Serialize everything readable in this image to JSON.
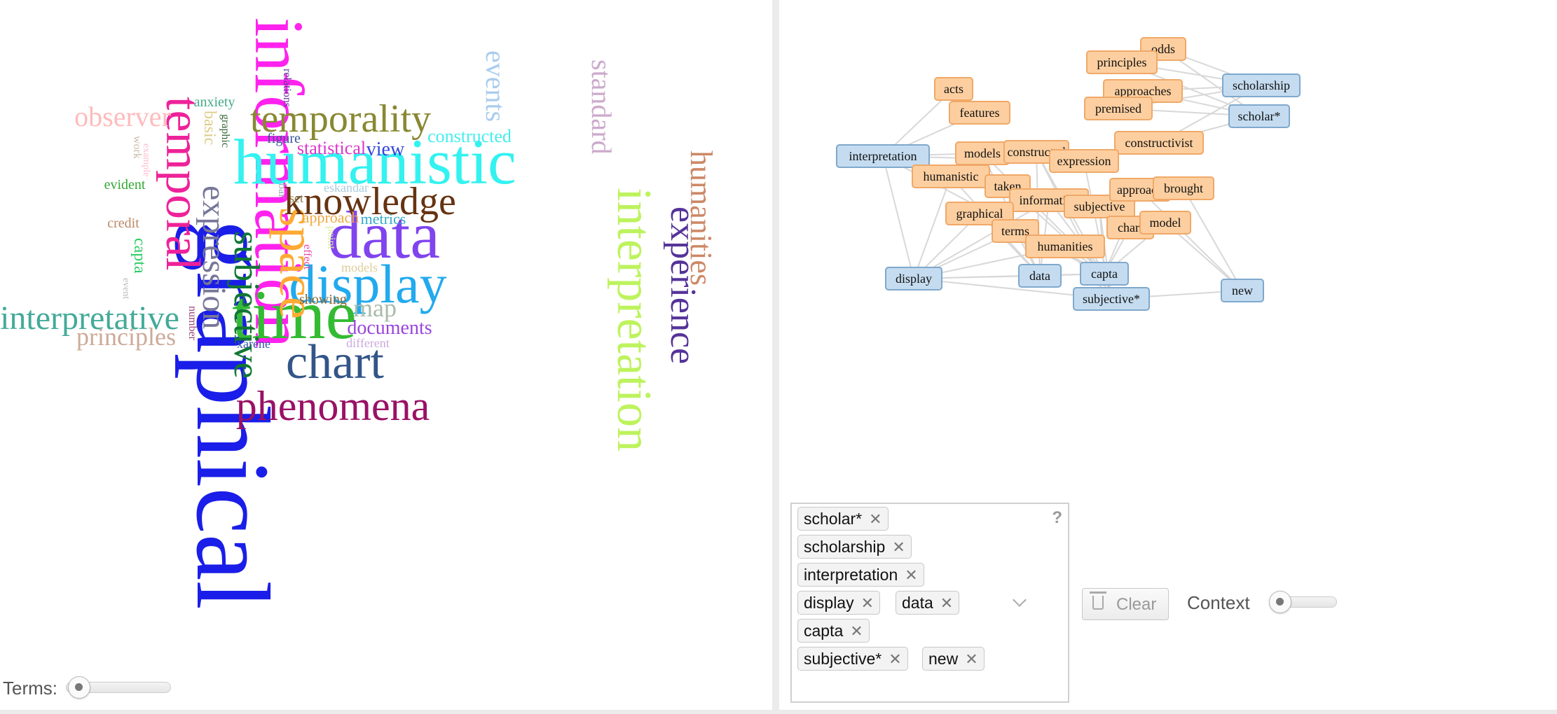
{
  "word_cloud": {
    "words": [
      {
        "text": "graphical",
        "color": "#1a1ee8",
        "size": 150
      },
      {
        "text": "information",
        "color": "#ff22ee",
        "size": 100
      },
      {
        "text": "humanistic",
        "color": "#33f2f0",
        "size": 92
      },
      {
        "text": "time",
        "color": "#33bb33",
        "size": 100
      },
      {
        "text": "data",
        "color": "#8044ee",
        "size": 96
      },
      {
        "text": "display",
        "color": "#22aaee",
        "size": 78
      },
      {
        "text": "interpretation",
        "color": "#bdf35d",
        "size": 70
      },
      {
        "text": "temporal",
        "color": "#ee2299",
        "size": 70
      },
      {
        "text": "space",
        "color": "#ffaa33",
        "size": 72
      },
      {
        "text": "chart",
        "color": "#335588",
        "size": 70
      },
      {
        "text": "phenomena",
        "color": "#991166",
        "size": 60
      },
      {
        "text": "knowledge",
        "color": "#663311",
        "size": 56
      },
      {
        "text": "temporality",
        "color": "#888833",
        "size": 56
      },
      {
        "text": "experience",
        "color": "#553399",
        "size": 52
      },
      {
        "text": "expression",
        "color": "#777799",
        "size": 48
      },
      {
        "text": "subjective",
        "color": "#117733",
        "size": 52
      },
      {
        "text": "interpretative",
        "color": "#44aa99",
        "size": 48
      },
      {
        "text": "humanities",
        "color": "#cc8866",
        "size": 44
      },
      {
        "text": "standard",
        "color": "#ccaacc",
        "size": 40
      },
      {
        "text": "events",
        "color": "#aaccee",
        "size": 40
      },
      {
        "text": "observer",
        "color": "#ffbbbb",
        "size": 40
      },
      {
        "text": "principles",
        "color": "#ccaa99",
        "size": 36
      },
      {
        "text": "map",
        "color": "#aabbaa",
        "size": 36
      },
      {
        "text": "documents",
        "color": "#9944dd",
        "size": 28
      },
      {
        "text": "constructed",
        "color": "#44eeee",
        "size": 26
      },
      {
        "text": "statistical",
        "color": "#dd33cc",
        "size": 26
      },
      {
        "text": "view",
        "color": "#3344dd",
        "size": 28
      },
      {
        "text": "basic",
        "color": "#ddcc88",
        "size": 24
      },
      {
        "text": "capta",
        "color": "#33cc66",
        "size": 24
      },
      {
        "text": "approach",
        "color": "#eeaa44",
        "size": 22
      },
      {
        "text": "metrics",
        "color": "#33aacc",
        "size": 22
      },
      {
        "text": "anxiety",
        "color": "#44aa88",
        "size": 20
      },
      {
        "text": "evident",
        "color": "#33aa33",
        "size": 20
      },
      {
        "text": "credit",
        "color": "#bb8866",
        "size": 20
      },
      {
        "text": "figure",
        "color": "#335599",
        "size": 20
      },
      {
        "text": "showing",
        "color": "#886633",
        "size": 20
      },
      {
        "text": "set",
        "color": "#887744",
        "size": 18
      },
      {
        "text": "eskandar",
        "color": "#aaccdd",
        "size": 18
      },
      {
        "text": "models",
        "color": "#ddcc99",
        "size": 18
      },
      {
        "text": "different",
        "color": "#ccaadd",
        "size": 18
      },
      {
        "text": "xárene",
        "color": "#3355aa",
        "size": 18
      },
      {
        "text": "work",
        "color": "#ccbbaa",
        "size": 16
      },
      {
        "text": "example",
        "color": "#ffbbcc",
        "size": 14
      },
      {
        "text": "relations",
        "color": "#663399",
        "size": 16
      },
      {
        "text": "graphic",
        "color": "#336633",
        "size": 16
      },
      {
        "text": "bar",
        "color": "#99aabb",
        "size": 16
      },
      {
        "text": "point",
        "color": "#ddee99",
        "size": 16
      },
      {
        "text": "effect",
        "color": "#ee44aa",
        "size": 16
      },
      {
        "text": "event",
        "color": "#bbbbbb",
        "size": 14
      },
      {
        "text": "number",
        "color": "#994477",
        "size": 16
      }
    ]
  },
  "terms_slider": {
    "label": "Terms:",
    "value": 0
  },
  "network": {
    "nodes": [
      {
        "id": "odds",
        "label": "odds",
        "type": "term"
      },
      {
        "id": "principles",
        "label": "principles",
        "type": "term"
      },
      {
        "id": "approaches",
        "label": "approaches",
        "type": "term"
      },
      {
        "id": "scholarship",
        "label": "scholarship",
        "type": "keyword"
      },
      {
        "id": "premised",
        "label": "premised",
        "type": "term"
      },
      {
        "id": "scholar",
        "label": "scholar*",
        "type": "keyword"
      },
      {
        "id": "acts",
        "label": "acts",
        "type": "term"
      },
      {
        "id": "features",
        "label": "features",
        "type": "term"
      },
      {
        "id": "constructivist",
        "label": "constructivist",
        "type": "term"
      },
      {
        "id": "interpretation",
        "label": "interpretation",
        "type": "keyword"
      },
      {
        "id": "models",
        "label": "models",
        "type": "term"
      },
      {
        "id": "constructed",
        "label": "constructed",
        "type": "term"
      },
      {
        "id": "expression",
        "label": "expression",
        "type": "term"
      },
      {
        "id": "humanistic",
        "label": "humanistic",
        "type": "term"
      },
      {
        "id": "taken",
        "label": "taken",
        "type": "term"
      },
      {
        "id": "information",
        "label": "information",
        "type": "term"
      },
      {
        "id": "subjective_t",
        "label": "subjective",
        "type": "term"
      },
      {
        "id": "approach",
        "label": "approach",
        "type": "term"
      },
      {
        "id": "brought",
        "label": "brought",
        "type": "term"
      },
      {
        "id": "graphical",
        "label": "graphical",
        "type": "term"
      },
      {
        "id": "terms",
        "label": "terms",
        "type": "term"
      },
      {
        "id": "chart",
        "label": "chart",
        "type": "term"
      },
      {
        "id": "model",
        "label": "model",
        "type": "term"
      },
      {
        "id": "humanities",
        "label": "humanities",
        "type": "term"
      },
      {
        "id": "display",
        "label": "display",
        "type": "keyword"
      },
      {
        "id": "data",
        "label": "data",
        "type": "keyword"
      },
      {
        "id": "capta",
        "label": "capta",
        "type": "keyword"
      },
      {
        "id": "subjective_k",
        "label": "subjective*",
        "type": "keyword"
      },
      {
        "id": "new",
        "label": "new",
        "type": "keyword"
      }
    ],
    "edges": [
      [
        "odds",
        "scholarship"
      ],
      [
        "odds",
        "scholar"
      ],
      [
        "principles",
        "scholarship"
      ],
      [
        "principles",
        "scholar"
      ],
      [
        "approaches",
        "scholarship"
      ],
      [
        "approaches",
        "scholar"
      ],
      [
        "premised",
        "scholarship"
      ],
      [
        "premised",
        "scholar"
      ],
      [
        "constructivist",
        "scholarship"
      ],
      [
        "constructivist",
        "scholar"
      ],
      [
        "acts",
        "interpretation"
      ],
      [
        "features",
        "interpretation"
      ],
      [
        "models",
        "interpretation"
      ],
      [
        "expression",
        "interpretation"
      ],
      [
        "humanistic",
        "display"
      ],
      [
        "humanistic",
        "data"
      ],
      [
        "models",
        "data"
      ],
      [
        "models",
        "capta"
      ],
      [
        "constructed",
        "capta"
      ],
      [
        "constructed",
        "subjective_k"
      ],
      [
        "constructed",
        "data"
      ],
      [
        "expression",
        "subjective_k"
      ],
      [
        "taken",
        "capta"
      ],
      [
        "information",
        "display"
      ],
      [
        "information",
        "data"
      ],
      [
        "information",
        "capta"
      ],
      [
        "subjective_t",
        "capta"
      ],
      [
        "subjective_t",
        "subjective_k"
      ],
      [
        "graphical",
        "display"
      ],
      [
        "graphical",
        "data"
      ],
      [
        "terms",
        "data"
      ],
      [
        "terms",
        "capta"
      ],
      [
        "terms",
        "display"
      ],
      [
        "humanities",
        "display"
      ],
      [
        "humanities",
        "capta"
      ],
      [
        "humanities",
        "subjective_k"
      ],
      [
        "approach",
        "new"
      ],
      [
        "approach",
        "capta"
      ],
      [
        "brought",
        "new"
      ],
      [
        "chart",
        "capta"
      ],
      [
        "model",
        "new"
      ],
      [
        "model",
        "capta"
      ],
      [
        "display",
        "capta"
      ],
      [
        "display",
        "subjective_k"
      ],
      [
        "display",
        "data"
      ],
      [
        "data",
        "capta"
      ],
      [
        "capta",
        "subjective_k"
      ],
      [
        "subjective_k",
        "new"
      ],
      [
        "interpretation",
        "display"
      ],
      [
        "interpretation",
        "capta"
      ]
    ]
  },
  "query_tags": [
    "scholar*",
    "scholarship",
    "interpretation",
    "display",
    "data",
    "capta",
    "subjective*",
    "new"
  ],
  "help_icon": "?",
  "clear_button": {
    "label": "Clear"
  },
  "context_slider": {
    "label": "Context",
    "value": 0
  },
  "colors": {
    "term": "#fdcfa0",
    "term_border": "#f0a868",
    "keyword": "#c5dcf0",
    "keyword_border": "#7fa8cc",
    "edge": "#d8d8d8"
  }
}
